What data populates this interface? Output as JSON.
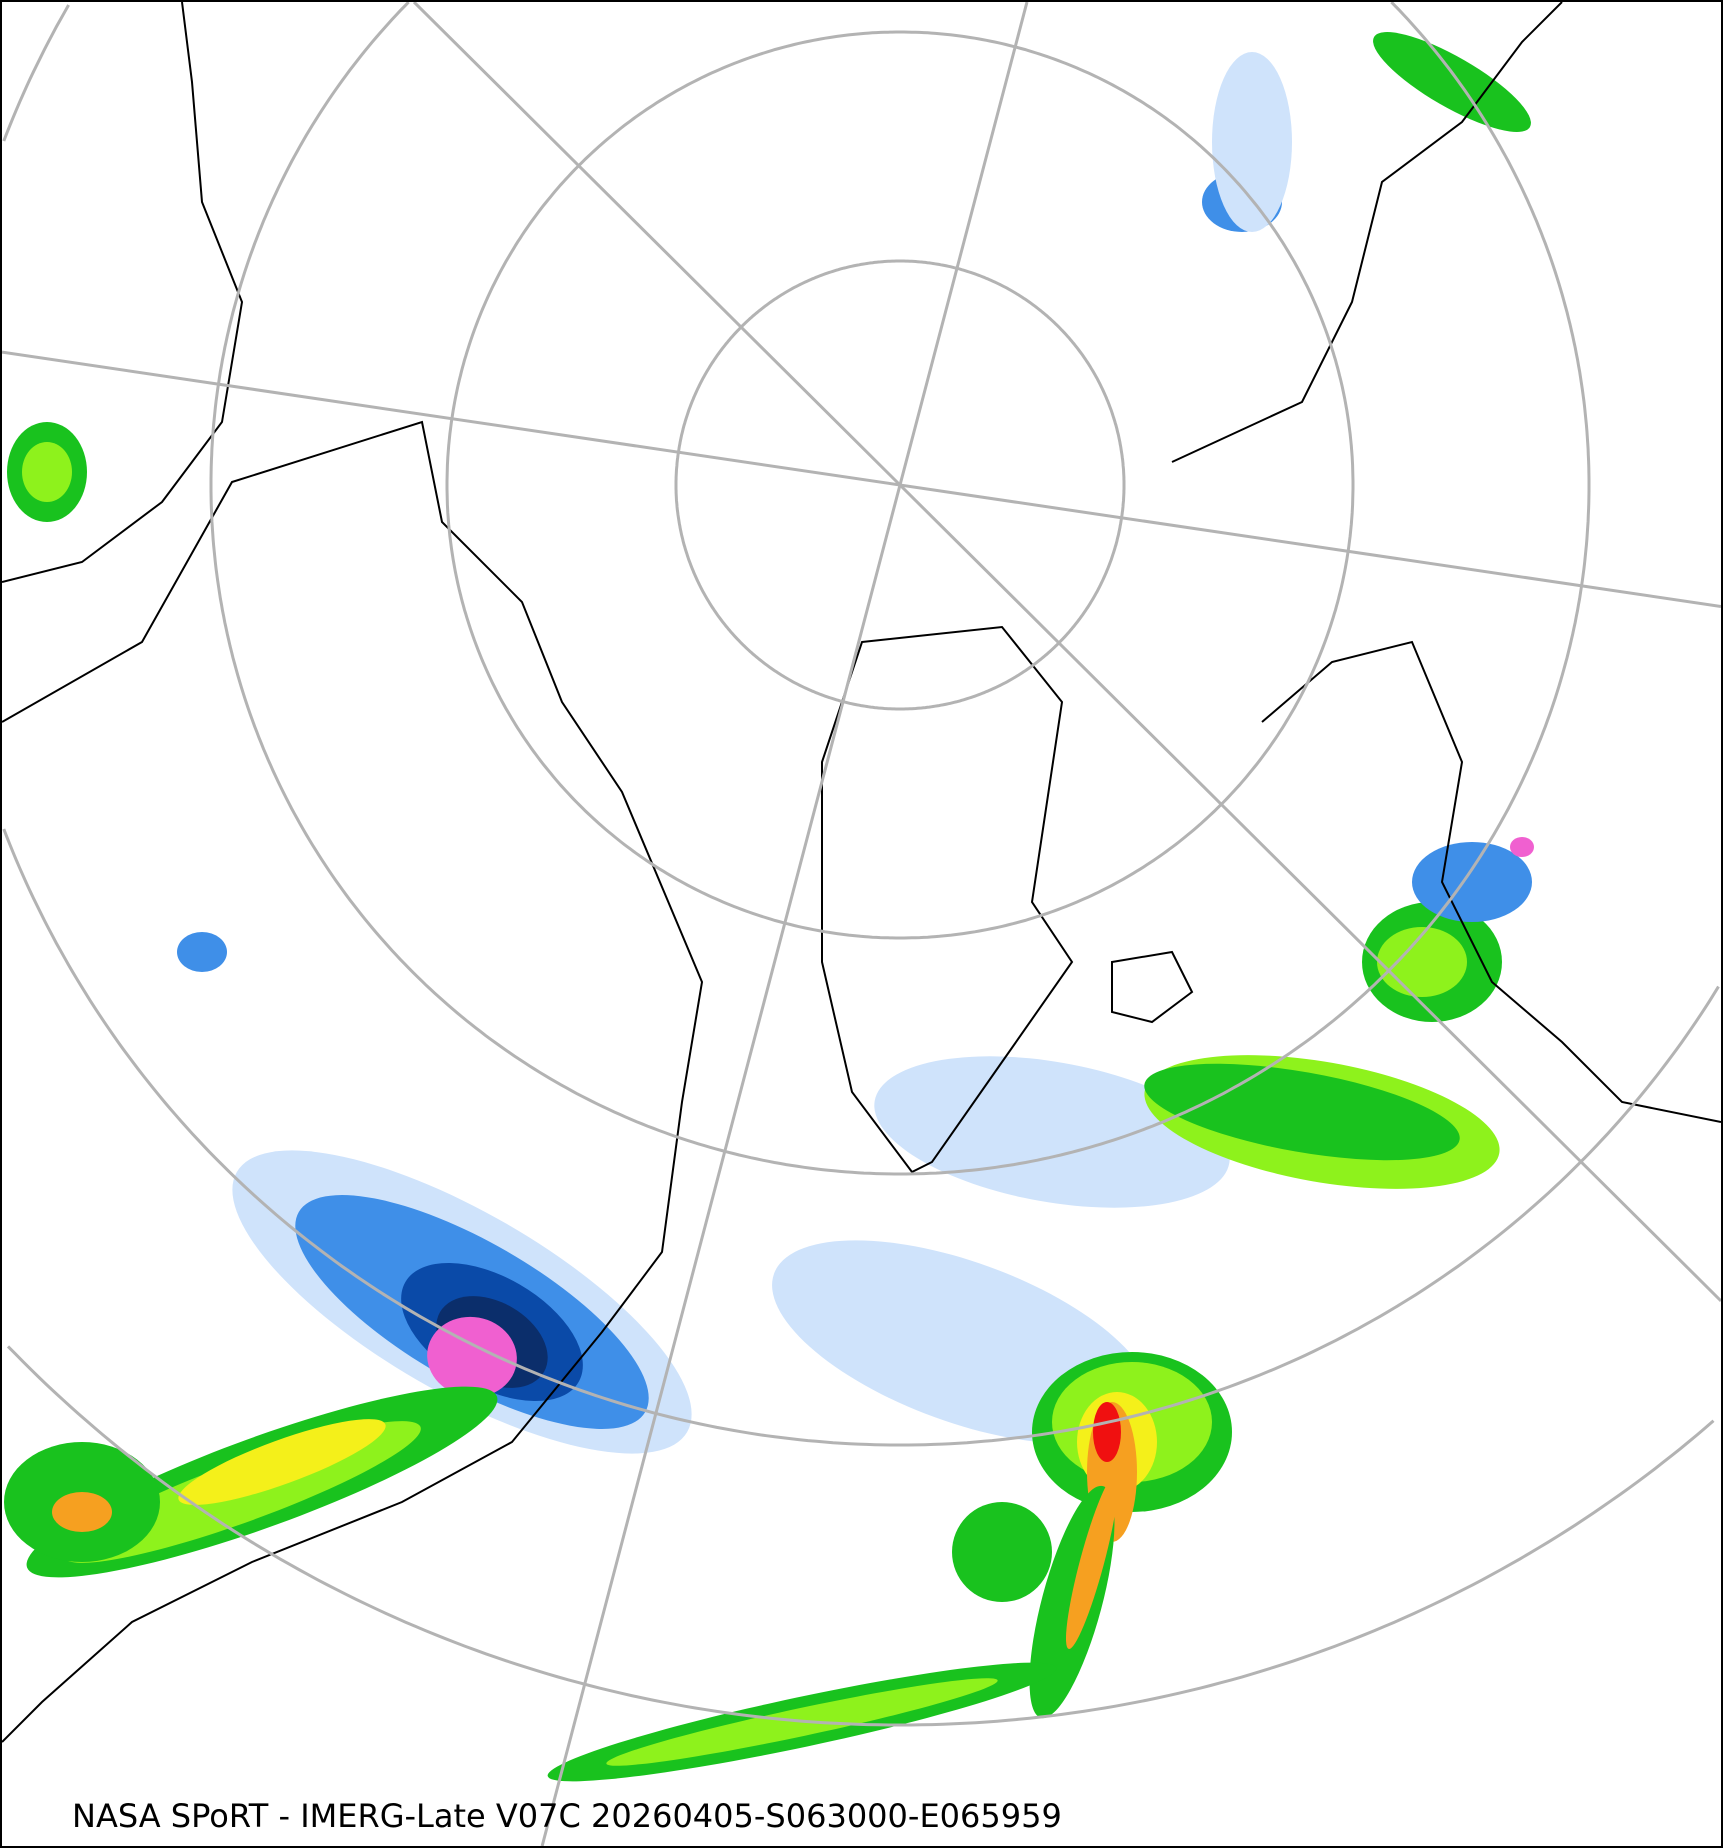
{
  "caption": "NASA SPoRT - IMERG-Late V07C 20260405-S063000-E065959",
  "colors": {
    "graticule": "#b3b3b3",
    "coastline": "#000000",
    "light_blue": "#cfe3fb",
    "blue": "#3f8fe8",
    "dark_blue": "#0a4aa8",
    "navy": "#0b2e6b",
    "pink": "#f060d0",
    "green_dark": "#0a7a14",
    "green": "#19c21e",
    "light_green": "#8ef21c",
    "yellow": "#f4f01a",
    "orange": "#f6a020",
    "red": "#f01010"
  }
}
